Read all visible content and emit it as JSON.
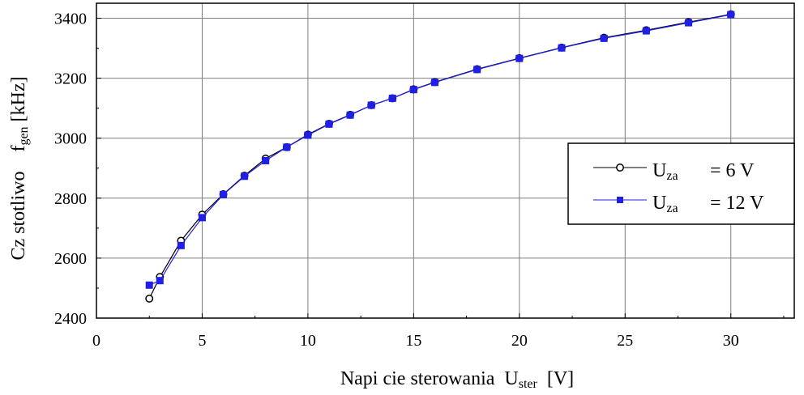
{
  "chart_data": {
    "type": "line",
    "xlabel": {
      "main": "Napi cie sterowania  U",
      "sub": "ster",
      "unit": "  [V]"
    },
    "ylabel": {
      "main": "Cz stotliwo    f",
      "sub": "gen",
      "unit": " [kHz]"
    },
    "xlim": [
      0,
      33
    ],
    "ylim": [
      2400,
      3450
    ],
    "x_ticks": [
      0,
      5,
      10,
      15,
      20,
      25,
      30
    ],
    "y_ticks": [
      2400,
      2600,
      2800,
      3000,
      3200,
      3400
    ],
    "grid": true,
    "legend": {
      "placement": "right",
      "entries": [
        {
          "prefix": "U",
          "sub": "za",
          "suffix": "= 6 V"
        },
        {
          "prefix": "U",
          "sub": "za",
          "suffix": "= 12 V"
        }
      ]
    },
    "series": [
      {
        "color": "#000000",
        "marker": "circle-open",
        "x": [
          2.5,
          3,
          4,
          5,
          6,
          7,
          8,
          9,
          10,
          11,
          12,
          13,
          14,
          15,
          16,
          18,
          20,
          22,
          24,
          26,
          28,
          30
        ],
        "y": [
          2465,
          2537,
          2658,
          2745,
          2813,
          2875,
          2932,
          2970,
          3012,
          3048,
          3078,
          3110,
          3133,
          3163,
          3187,
          3230,
          3267,
          3302,
          3335,
          3360,
          3387,
          3413
        ]
      },
      {
        "color": "#1f1fe6",
        "marker": "square-filled",
        "x": [
          2.5,
          3,
          4,
          5,
          6,
          7,
          8,
          9,
          10,
          11,
          12,
          13,
          14,
          15,
          16,
          18,
          20,
          22,
          24,
          26,
          28,
          30
        ],
        "y": [
          2510,
          2525,
          2642,
          2735,
          2812,
          2873,
          2925,
          2970,
          3010,
          3047,
          3077,
          3110,
          3133,
          3162,
          3186,
          3229,
          3266,
          3301,
          3333,
          3358,
          3385,
          3412
        ]
      }
    ]
  }
}
